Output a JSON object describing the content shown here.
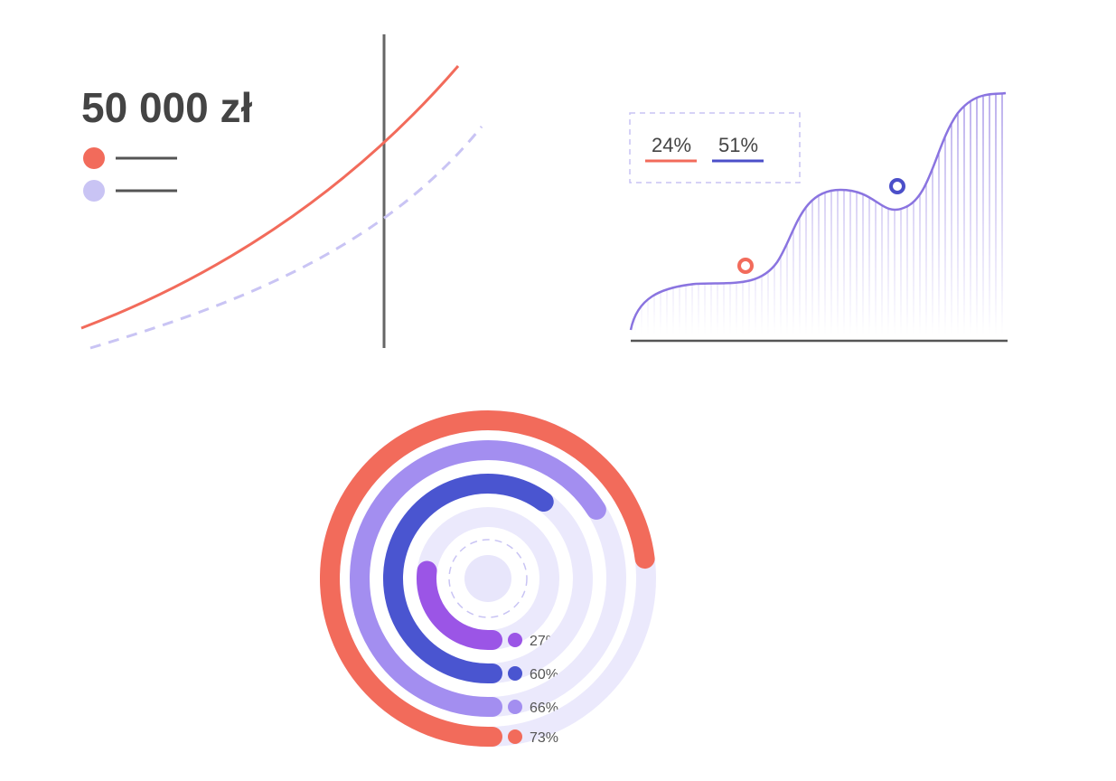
{
  "chart_data": [
    {
      "type": "line",
      "title": "50 000 zł"
    },
    {
      "type": "area",
      "series": [
        {
          "name": "24%",
          "color": "#f26b5b"
        },
        {
          "name": "51%",
          "color": "#4b4fc9"
        }
      ]
    },
    {
      "type": "radial_bar",
      "values": [
        27,
        60,
        66,
        73
      ],
      "value_labels": [
        "27%",
        "60%",
        "66%",
        "73%"
      ],
      "colors": [
        "#9b55e6",
        "#4a55d0",
        "#a38ef0",
        "#f26b5b"
      ]
    }
  ]
}
